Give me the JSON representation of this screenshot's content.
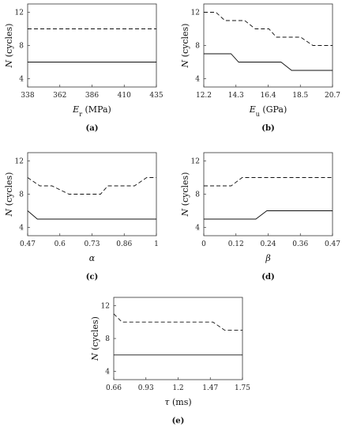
{
  "chart_data": [
    {
      "type": "line",
      "panel_label": "(a)",
      "xlabel_var": "E",
      "xlabel_sub": "r",
      "xlabel_unit": " (MPa)",
      "ylabel": "N (cycles)",
      "xticks": [
        "338",
        "362",
        "386",
        "410",
        "435"
      ],
      "yticks": [
        "4",
        "8",
        "12"
      ],
      "xlim": [
        338,
        435
      ],
      "ylim": [
        3,
        13
      ],
      "series": [
        {
          "style": "solid",
          "x": [
            338,
            435
          ],
          "y": [
            6,
            6
          ]
        },
        {
          "style": "dashed",
          "x": [
            338,
            435
          ],
          "y": [
            10,
            10
          ]
        }
      ]
    },
    {
      "type": "line",
      "panel_label": "(b)",
      "xlabel_var": "E",
      "xlabel_sub": "u",
      "xlabel_unit": " (GPa)",
      "ylabel": "N (cycles)",
      "xticks": [
        "12.2",
        "14.3",
        "16.4",
        "18.5",
        "20.7"
      ],
      "yticks": [
        "4",
        "8",
        "12"
      ],
      "xlim": [
        12.2,
        20.7
      ],
      "ylim": [
        3,
        13
      ],
      "series": [
        {
          "style": "solid",
          "x": [
            12.2,
            14.0,
            14.5,
            17.3,
            18.0,
            20.7
          ],
          "y": [
            7,
            7,
            6,
            6,
            5,
            5
          ]
        },
        {
          "style": "dashed",
          "x": [
            12.2,
            13.0,
            13.6,
            14.9,
            15.6,
            16.5,
            17.0,
            18.6,
            19.4,
            20.7
          ],
          "y": [
            12,
            12,
            11,
            11,
            10,
            10,
            9,
            9,
            8,
            8
          ]
        }
      ]
    },
    {
      "type": "line",
      "panel_label": "(c)",
      "xlabel_var": "α",
      "xlabel_sub": "",
      "xlabel_unit": "",
      "ylabel": "N (cycles)",
      "xticks": [
        "0.47",
        "0.6",
        "0.73",
        "0.86",
        "1"
      ],
      "yticks": [
        "4",
        "8",
        "12"
      ],
      "xlim": [
        0.47,
        1.0
      ],
      "ylim": [
        3,
        13
      ],
      "series": [
        {
          "style": "solid",
          "x": [
            0.47,
            0.51,
            1.0
          ],
          "y": [
            6,
            5,
            5
          ]
        },
        {
          "style": "dashed",
          "x": [
            0.47,
            0.52,
            0.57,
            0.64,
            0.77,
            0.8,
            0.91,
            0.96,
            1.0
          ],
          "y": [
            10,
            9,
            9,
            8,
            8,
            9,
            9,
            10,
            10
          ]
        }
      ]
    },
    {
      "type": "line",
      "panel_label": "(d)",
      "xlabel_var": "β",
      "xlabel_sub": "",
      "xlabel_unit": "",
      "ylabel": "N (cycles)",
      "xticks": [
        "0",
        "0.12",
        "0.24",
        "0.36",
        "0.47"
      ],
      "yticks": [
        "4",
        "8",
        "12"
      ],
      "xlim": [
        0,
        0.47
      ],
      "ylim": [
        3,
        13
      ],
      "series": [
        {
          "style": "solid",
          "x": [
            0,
            0.19,
            0.23,
            0.47
          ],
          "y": [
            5,
            5,
            6,
            6
          ]
        },
        {
          "style": "dashed",
          "x": [
            0,
            0.1,
            0.14,
            0.47
          ],
          "y": [
            9,
            9,
            10,
            10
          ]
        }
      ]
    },
    {
      "type": "line",
      "panel_label": "(e)",
      "xlabel_var": "τ",
      "xlabel_sub": "",
      "xlabel_unit": " (ms)",
      "ylabel": "N (cycles)",
      "xticks": [
        "0.66",
        "0.93",
        "1.2",
        "1.47",
        "1.75"
      ],
      "yticks": [
        "4",
        "8",
        "12"
      ],
      "xlim": [
        0.66,
        1.75
      ],
      "ylim": [
        3,
        13
      ],
      "series": [
        {
          "style": "solid",
          "x": [
            0.66,
            1.75
          ],
          "y": [
            6,
            6
          ]
        },
        {
          "style": "dashed",
          "x": [
            0.66,
            0.73,
            1.5,
            1.6,
            1.75
          ],
          "y": [
            11,
            10,
            10,
            9,
            9
          ]
        }
      ]
    }
  ]
}
